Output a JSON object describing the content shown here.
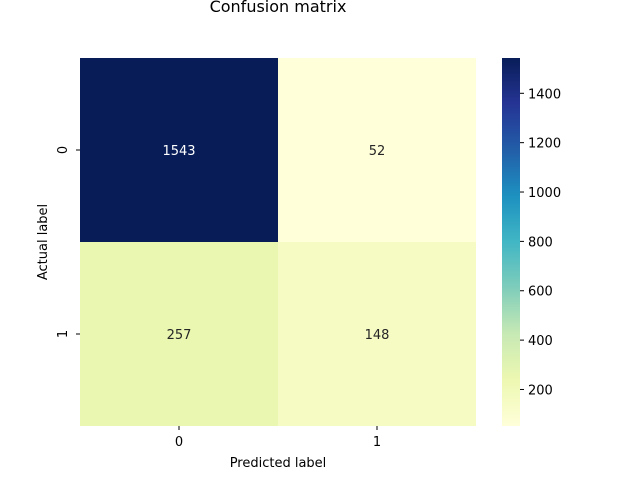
{
  "chart_data": {
    "type": "heatmap",
    "title": "Confusion matrix",
    "xlabel": "Predicted label",
    "ylabel": "Actual label",
    "x_categories": [
      "0",
      "1"
    ],
    "y_categories": [
      "0",
      "1"
    ],
    "values": [
      [
        1543,
        52
      ],
      [
        257,
        148
      ]
    ],
    "colormap": "YlGnBu",
    "colorbar": {
      "range": [
        52,
        1543
      ],
      "ticks": [
        200,
        400,
        600,
        800,
        1000,
        1200,
        1400
      ],
      "tick_labels": [
        "200",
        "400",
        "600",
        "800",
        "1000",
        "1200",
        "1400"
      ]
    },
    "annotation_colors": {
      "dark": "#ffffff",
      "light": "#262626"
    }
  }
}
